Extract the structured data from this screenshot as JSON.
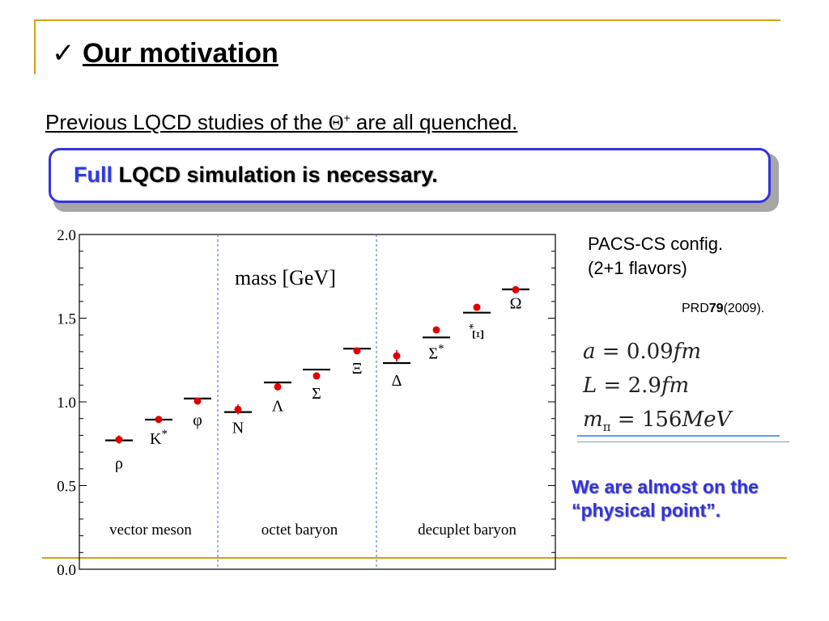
{
  "slide": {
    "check_mark": "✓",
    "title": "Our motivation",
    "subtitle_before": "Previous LQCD studies of the ",
    "subtitle_symbol": "Θ",
    "subtitle_sup": "+",
    "subtitle_after": " are all quenched.",
    "callout_highlight": "Full",
    "callout_rest": " LQCD simulation is necessary.",
    "callout_color": "#3333dd",
    "accent_color": "#d4a017"
  },
  "side": {
    "config_line1": "PACS-CS config.",
    "config_line2": "(2+1 flavors)",
    "ref_prefix": "PRD",
    "ref_volume": "79",
    "ref_year": "(2009).",
    "param_a_var": "a",
    "param_a_val": " = 0.09",
    "param_a_unit": "fm",
    "param_L_var": "L",
    "param_L_val": " = 2.9",
    "param_L_unit": "fm",
    "param_m_var": "m",
    "param_m_sub": "π",
    "param_m_val": " = 156",
    "param_m_unit": "MeV",
    "note_line1": "We are almost on the",
    "note_line2": "“physical point”."
  },
  "chart_data": {
    "type": "scatter",
    "title": "mass [GeV]",
    "ylim": [
      0.0,
      2.0
    ],
    "yticks": [
      "0.0",
      "0.5",
      "1.0",
      "1.5",
      "2.0"
    ],
    "groups": [
      "vector meson",
      "octet baryon",
      "decuplet baryon"
    ],
    "legend": "none",
    "grid": false,
    "series": [
      {
        "name": "",
        "color": "#e00000",
        "marker": "dot-with-error",
        "values": [
          0.775,
          0.895,
          1.005,
          0.955,
          1.09,
          1.155,
          1.305,
          1.275,
          1.43,
          1.565,
          1.67
        ]
      },
      {
        "name": "",
        "color": "#000000",
        "marker": "horizontal-bar",
        "values": [
          0.77,
          0.894,
          1.02,
          0.939,
          1.116,
          1.193,
          1.318,
          1.232,
          1.385,
          1.533,
          1.672
        ]
      }
    ],
    "labels": [
      "ρ",
      "K*",
      "φ",
      "N",
      "Λ",
      "Σ",
      "Ξ",
      "Δ",
      "Σ*",
      "Ξ*",
      "Ω"
    ],
    "errors": [
      0.025,
      0.01,
      0.01,
      0.03,
      0.015,
      0.015,
      0.01,
      0.035,
      0.015,
      0.01,
      0.01
    ]
  }
}
